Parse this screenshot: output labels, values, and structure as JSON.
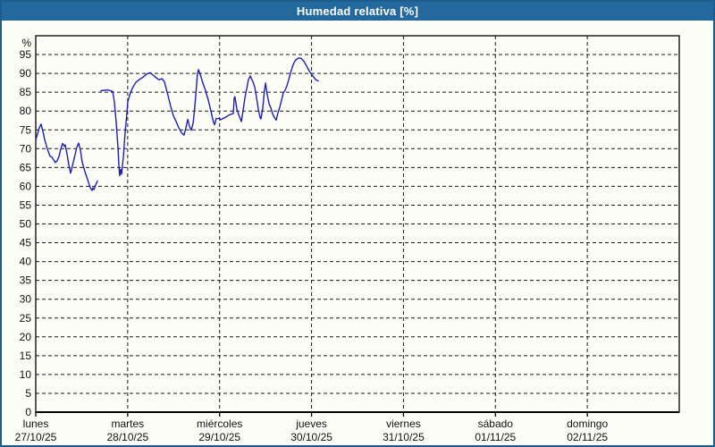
{
  "window": {
    "title": "Humedad relativa [%]"
  },
  "colors": {
    "titlebar": "#24699e",
    "title_text": "#ffffff",
    "window_border": "#1d5c8d",
    "background": "#fcfdf6",
    "grid": "#1a1a1a",
    "text": "#111111",
    "line": "#1e1eb4"
  },
  "chart_data": {
    "type": "line",
    "title": "Humedad relativa [%]",
    "y_unit_label": "%",
    "ylabel": "",
    "xlabel": "",
    "ylim": [
      0,
      100
    ],
    "y_ticks": [
      0,
      5,
      10,
      15,
      20,
      25,
      30,
      35,
      40,
      45,
      50,
      55,
      60,
      65,
      70,
      75,
      80,
      85,
      90,
      95
    ],
    "xlim_hours": [
      0,
      168
    ],
    "x_day_tick_hours": [
      0,
      24,
      48,
      72,
      96,
      120,
      144
    ],
    "grid": "dashed",
    "legend": "none",
    "x_day_labels": [
      {
        "day": "lunes",
        "date": "27/10/25"
      },
      {
        "day": "martes",
        "date": "28/10/25"
      },
      {
        "day": "miércoles",
        "date": "29/10/25"
      },
      {
        "day": "jueves",
        "date": "30/10/25"
      },
      {
        "day": "viernes",
        "date": "31/10/25"
      },
      {
        "day": "sábado",
        "date": "01/11/25"
      },
      {
        "day": "domingo",
        "date": "02/11/25"
      }
    ],
    "series": [
      {
        "name": "Humedad relativa",
        "unit": "%",
        "color": "#1e1eb4",
        "segments": [
          [
            [
              0,
              72.4
            ],
            [
              0.5,
              74
            ],
            [
              0.9,
              75.5
            ],
            [
              1.4,
              76.5
            ],
            [
              1.9,
              74.5
            ],
            [
              2.3,
              72.5
            ],
            [
              3,
              70
            ],
            [
              3.7,
              68
            ],
            [
              4.2,
              67.8
            ],
            [
              4.7,
              67
            ],
            [
              5.1,
              66.3
            ],
            [
              5.6,
              66.8
            ],
            [
              6.1,
              68
            ],
            [
              6.5,
              69.8
            ],
            [
              7,
              71.4
            ],
            [
              7.5,
              70.6
            ],
            [
              7.7,
              71
            ],
            [
              8.2,
              68.5
            ],
            [
              8.6,
              65.8
            ],
            [
              9.1,
              63.5
            ],
            [
              9.6,
              65.5
            ],
            [
              10.3,
              68.5
            ],
            [
              10.7,
              70.3
            ],
            [
              11.2,
              71.5
            ],
            [
              11.7,
              69.5
            ],
            [
              12.1,
              66.5
            ],
            [
              12.8,
              64
            ],
            [
              13.3,
              62.5
            ],
            [
              13.8,
              61
            ],
            [
              14.2,
              59.7
            ],
            [
              14.7,
              58.9
            ],
            [
              14.9,
              59.6
            ],
            [
              15.2,
              59.1
            ],
            [
              15.6,
              60.3
            ],
            [
              16.1,
              61.4
            ]
          ],
          [
            [
              17,
              85.4
            ],
            [
              18.7,
              85.6
            ],
            [
              19.6,
              85.4
            ],
            [
              20.1,
              85.2
            ],
            [
              20.5,
              82.5
            ],
            [
              21,
              77
            ],
            [
              21.5,
              70
            ],
            [
              21.7,
              65.5
            ],
            [
              21.9,
              62.8
            ],
            [
              22.2,
              64.5
            ],
            [
              22.4,
              63.2
            ],
            [
              22.9,
              68
            ],
            [
              23.3,
              74
            ],
            [
              23.8,
              79.5
            ],
            [
              24,
              82.3
            ],
            [
              24.5,
              84.2
            ],
            [
              25.2,
              86
            ],
            [
              26.1,
              87.6
            ],
            [
              27.1,
              88.4
            ],
            [
              28,
              89
            ],
            [
              28.9,
              89.8
            ],
            [
              29.9,
              90.2
            ],
            [
              30.8,
              89.4
            ],
            [
              31.5,
              88.8
            ],
            [
              32.2,
              88.3
            ],
            [
              32.9,
              88.6
            ],
            [
              33.6,
              87.8
            ],
            [
              34.1,
              85.8
            ],
            [
              34.5,
              84.2
            ],
            [
              35.2,
              81.3
            ],
            [
              35.9,
              78.8
            ],
            [
              36.6,
              77.3
            ],
            [
              37.3,
              75.6
            ],
            [
              38,
              74.3
            ],
            [
              38.7,
              73.6
            ],
            [
              39.2,
              75.5
            ],
            [
              39.7,
              77.8
            ],
            [
              40.1,
              76
            ],
            [
              40.6,
              74.9
            ],
            [
              41.1,
              76.8
            ],
            [
              41.5,
              81
            ],
            [
              42,
              87
            ],
            [
              42.2,
              90
            ],
            [
              42.5,
              91
            ],
            [
              42.9,
              89.8
            ],
            [
              43.6,
              87.5
            ],
            [
              44.3,
              85.5
            ],
            [
              45,
              83
            ],
            [
              45.5,
              81
            ],
            [
              46,
              78.8
            ],
            [
              46.4,
              77
            ],
            [
              46.7,
              76.4
            ],
            [
              47.1,
              78
            ],
            [
              48,
              78
            ],
            [
              48.3,
              77.7
            ],
            [
              49,
              78.1
            ],
            [
              49.7,
              78.4
            ],
            [
              50.4,
              78.9
            ],
            [
              51.1,
              79.2
            ],
            [
              51.6,
              79.4
            ],
            [
              51.8,
              83.4
            ],
            [
              52,
              83.8
            ],
            [
              52.5,
              80.5
            ],
            [
              53,
              79
            ],
            [
              53.7,
              77.2
            ],
            [
              54.1,
              80
            ],
            [
              54.6,
              83.5
            ],
            [
              55.1,
              86
            ],
            [
              55.5,
              88.3
            ],
            [
              56,
              89.3
            ],
            [
              56.7,
              87.8
            ],
            [
              57.2,
              86.3
            ],
            [
              57.6,
              83.8
            ],
            [
              58.1,
              80.5
            ],
            [
              58.6,
              78.2
            ],
            [
              58.8,
              77.9
            ],
            [
              59.3,
              81
            ],
            [
              59.7,
              85.5
            ],
            [
              60,
              87.4
            ],
            [
              60.4,
              84.5
            ],
            [
              60.9,
              82
            ],
            [
              61.4,
              80.8
            ],
            [
              61.8,
              79.3
            ],
            [
              62.3,
              78.3
            ],
            [
              62.8,
              77.6
            ],
            [
              63.2,
              79.5
            ],
            [
              63.7,
              81
            ],
            [
              64.2,
              83
            ],
            [
              64.6,
              84.8
            ],
            [
              65.1,
              85.5
            ],
            [
              65.6,
              86.8
            ],
            [
              66,
              88.2
            ],
            [
              66.5,
              90
            ],
            [
              67,
              91.7
            ],
            [
              67.4,
              92.8
            ],
            [
              67.9,
              93.6
            ],
            [
              68.6,
              94.1
            ],
            [
              69.3,
              94
            ],
            [
              70,
              93.2
            ],
            [
              70.7,
              92
            ],
            [
              71.2,
              91
            ],
            [
              71.9,
              89.9
            ],
            [
              72.6,
              89
            ],
            [
              73,
              88.4
            ],
            [
              73.7,
              88
            ]
          ]
        ]
      }
    ]
  }
}
